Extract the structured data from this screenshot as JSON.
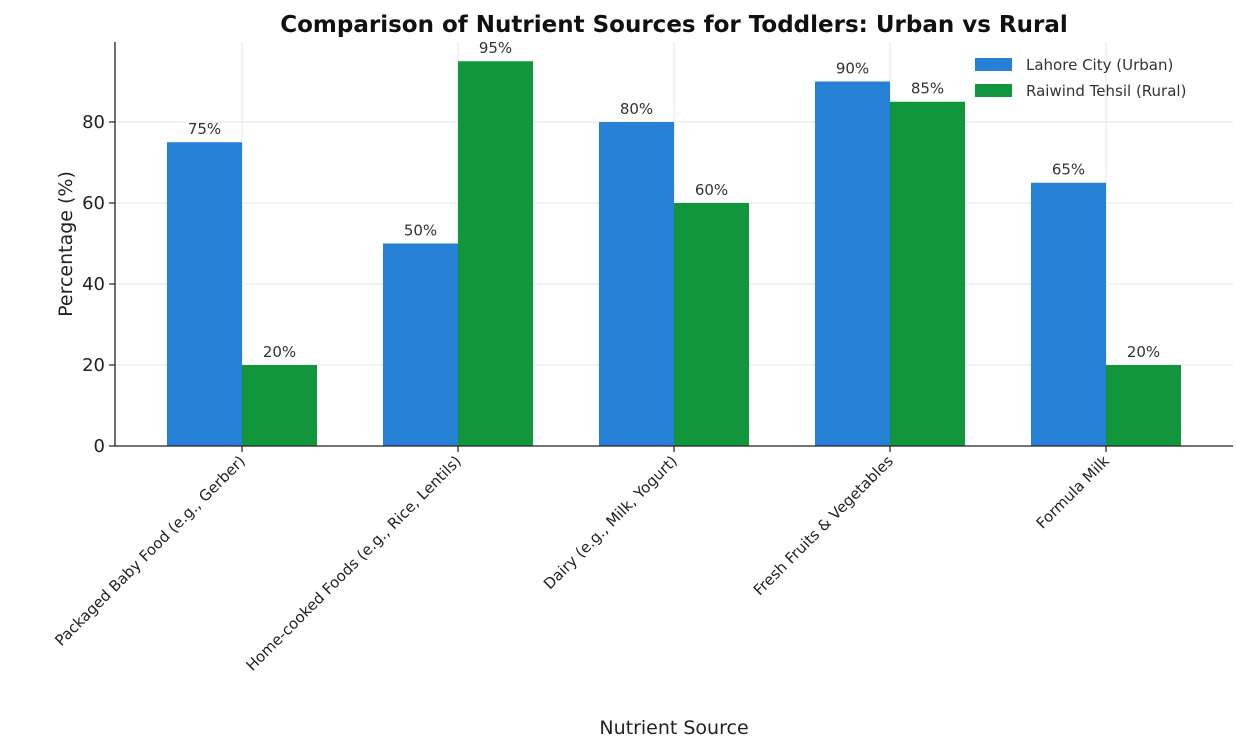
{
  "chart_data": {
    "type": "bar",
    "title": "Comparison of Nutrient Sources for Toddlers: Urban vs Rural",
    "xlabel": "Nutrient Source",
    "ylabel": "Percentage (%)",
    "categories": [
      "Packaged Baby Food (e.g., Gerber)",
      "Home-cooked Foods (e.g., Rice, Lentils)",
      "Dairy (e.g., Milk, Yogurt)",
      "Fresh Fruits & Vegetables",
      "Formula Milk"
    ],
    "series": [
      {
        "name": "Lahore City (Urban)",
        "color": "#2680d6",
        "values": [
          75,
          50,
          80,
          90,
          65
        ]
      },
      {
        "name": "Raiwind Tehsil (Rural)",
        "color": "#11963d",
        "values": [
          20,
          95,
          60,
          85,
          20
        ]
      }
    ],
    "data_label_suffix": "%",
    "ylim": [
      0,
      99.75
    ],
    "yticks": [
      0,
      20,
      40,
      60,
      80
    ],
    "grid": true,
    "legend_position": "top-right"
  }
}
